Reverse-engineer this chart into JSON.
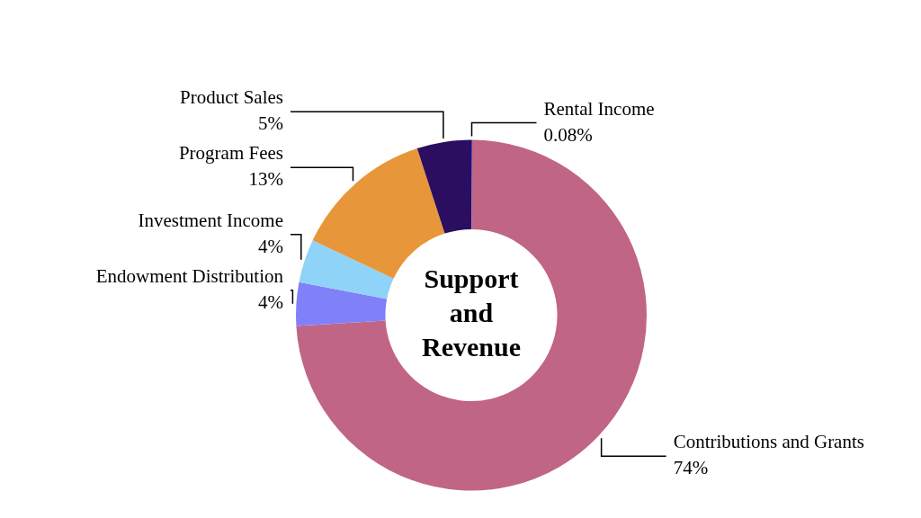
{
  "chart_data": {
    "type": "donut",
    "title": "Support and Revenue",
    "categories": [
      "Rental Income",
      "Contributions and Grants",
      "Endowment Distribution",
      "Investment Income",
      "Program Fees",
      "Product Sales"
    ],
    "values": [
      0.08,
      74,
      4,
      4,
      13,
      5
    ],
    "value_labels": [
      "0.08%",
      "74%",
      "4%",
      "4%",
      "13%",
      "5%"
    ],
    "colors": [
      "#3a3ad0",
      "#c06585",
      "#8080f8",
      "#8fd3f8",
      "#e8963a",
      "#2b0e5f"
    ],
    "legend": false
  }
}
